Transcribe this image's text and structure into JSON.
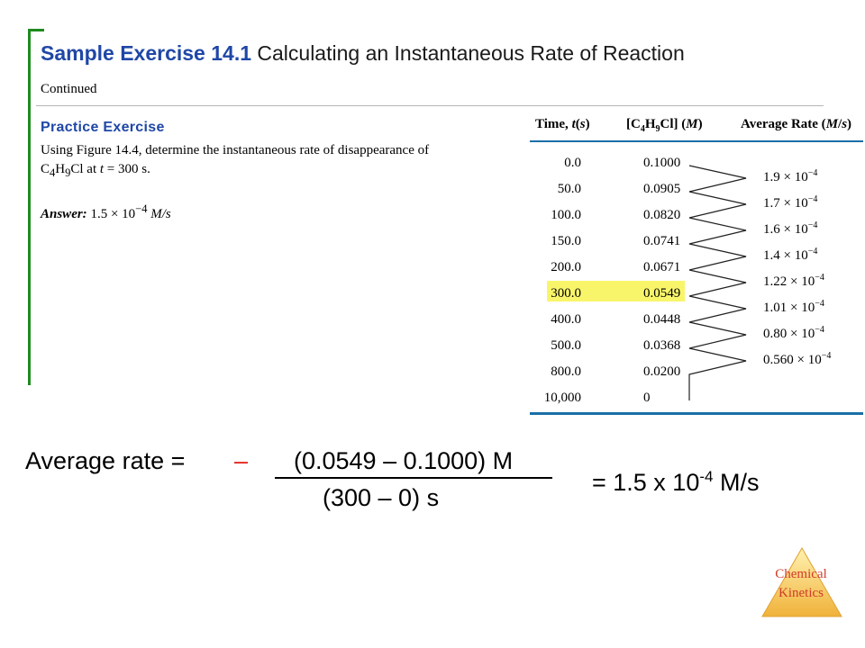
{
  "slide": {
    "title_number": "Sample Exercise 14.1",
    "title_rest": "Calculating an Instantaneous Rate of Reaction",
    "continued": "Continued"
  },
  "practice": {
    "heading": "Practice Exercise",
    "line1": "Using Figure 14.4, determine the instantaneous rate of disappearance of",
    "line2_pre": "C",
    "line2_sub1": "4",
    "line2_mid": "H",
    "line2_sub2": "9",
    "line2_post": "Cl at ",
    "line2_t": "t",
    "line2_end": " = 300 s.",
    "answer_label": "Answer:",
    "answer_value": "1.5 × 10",
    "answer_exp": "−4",
    "answer_unit": " M/s"
  },
  "table": {
    "header_time": "Time, t(s)",
    "header_conc": "[C4H9Cl] (M)",
    "header_rate": "Average Rate (M/s)",
    "times": [
      "0.0",
      "50.0",
      "100.0",
      "150.0",
      "200.0",
      "300.0",
      "400.0",
      "500.0",
      "800.0",
      "10,000"
    ],
    "concentrations": [
      "0.1000",
      "0.0905",
      "0.0820",
      "0.0741",
      "0.0671",
      "0.0549",
      "0.0448",
      "0.0368",
      "0.0200",
      "0"
    ],
    "rates": [
      {
        "mant": "1.9 × 10",
        "exp": "−4"
      },
      {
        "mant": "1.7 × 10",
        "exp": "−4"
      },
      {
        "mant": "1.6 × 10",
        "exp": "−4"
      },
      {
        "mant": "1.4 × 10",
        "exp": "−4"
      },
      {
        "mant": "1.22 × 10",
        "exp": "−4"
      },
      {
        "mant": "1.01 × 10",
        "exp": "−4"
      },
      {
        "mant": "0.80 × 10",
        "exp": "−4"
      },
      {
        "mant": "0.560 × 10",
        "exp": "−4"
      }
    ],
    "highlight_color": "#f9f56a"
  },
  "equation": {
    "lhs": "Average  rate =",
    "minus": "–",
    "numerator": "(0.0549 – 0.1000) M",
    "denominator": "(300 – 0) s",
    "result_pre": "=  1.5 x 10",
    "result_exp": "-4",
    "result_unit": " M/s"
  },
  "logo": {
    "line1": "Chemical",
    "line2": "Kinetics"
  }
}
